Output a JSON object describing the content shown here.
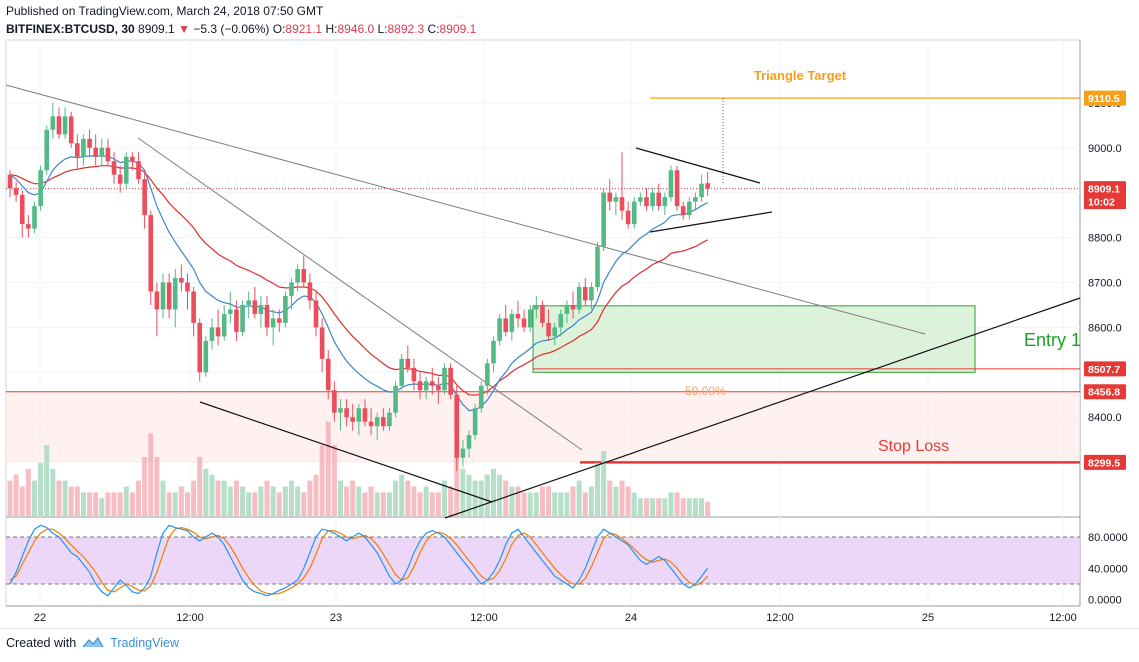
{
  "header": {
    "published": "Published on TradingView.com, March 24, 2018 07:50 GMT",
    "symbol": "BITFINEX:BTCUSD, 30",
    "last": "8909.1",
    "change": "−5.3 (−0.06%)",
    "open_label": "O:",
    "open": "8921.1",
    "high_label": "H:",
    "high": "8946.0",
    "low_label": "L:",
    "low": "8892.3",
    "close_label": "C:",
    "close": "8909.1"
  },
  "footer": {
    "created_with": "Created with",
    "brand": "TradingView"
  },
  "colors": {
    "up": "#53b987",
    "down": "#eb4d5c",
    "ema_fast": "#3d85c6",
    "ema_slow": "#e02c2c",
    "target": "#f4a01d",
    "stop": "#e53935",
    "entry_fill": "#d7f0d4",
    "entry_border": "#2e9e33",
    "stoch_bg": "#e8cdf7",
    "stoch_k": "#2196f3",
    "stoch_d": "#f57c00"
  },
  "annotations": {
    "triangle_target": "Triangle Target",
    "entry": "Entry 1",
    "stop_loss": "Stop Loss",
    "fib_50": "50.00%"
  },
  "chart_data": {
    "type": "candlestick",
    "title": "BITFINEX:BTCUSD, 30",
    "price_ylim": [
      8180,
      9240
    ],
    "price_ticks": [
      "9100.0",
      "9000.0",
      "8900.0",
      "8800.0",
      "8700.0",
      "8600.0",
      "8500.0",
      "8400.0",
      "8300.0"
    ],
    "price_tags": [
      {
        "label": "9110.5",
        "value": 9110.5,
        "color": "#f4a01d"
      },
      {
        "label": "8909.1",
        "value": 8909.1,
        "color": "#e53935"
      },
      {
        "label": "10:02",
        "value": 8880,
        "color": "#e53935"
      },
      {
        "label": "8507.7",
        "value": 8507.7,
        "color": "#e53935"
      },
      {
        "label": "8456.8",
        "value": 8456.8,
        "color": "#e53935"
      },
      {
        "label": "8299.5",
        "value": 8299.5,
        "color": "#e53935"
      }
    ],
    "x_ticks": [
      "22",
      "12:00",
      "23",
      "12:00",
      "24",
      "12:00",
      "25",
      "12:00"
    ],
    "stoch_ticks": [
      "80.0000",
      "40.0000",
      "0.0000"
    ],
    "stoch_levels": [
      80,
      20
    ],
    "levels": {
      "target": 9110.5,
      "entry_high": 8648,
      "entry_low": 8500,
      "fib_50": 8507.7,
      "stop_top": 8456.8,
      "stop_bottom": 8299.5,
      "last": 8909.1
    },
    "candles": [
      [
        8940,
        8950,
        8890,
        8910
      ],
      [
        8910,
        8925,
        8880,
        8895
      ],
      [
        8895,
        8905,
        8800,
        8830
      ],
      [
        8830,
        8850,
        8800,
        8820
      ],
      [
        8820,
        8880,
        8810,
        8870
      ],
      [
        8870,
        8960,
        8860,
        8950
      ],
      [
        8950,
        9050,
        8940,
        9040
      ],
      [
        9040,
        9100,
        9020,
        9070
      ],
      [
        9070,
        9090,
        9020,
        9030
      ],
      [
        9030,
        9090,
        9020,
        9070
      ],
      [
        9070,
        9080,
        9000,
        9010
      ],
      [
        9010,
        9030,
        8950,
        8980
      ],
      [
        8980,
        9030,
        8960,
        9020
      ],
      [
        9020,
        9040,
        8980,
        9000
      ],
      [
        9000,
        9030,
        8960,
        8980
      ],
      [
        8980,
        9020,
        8960,
        9000
      ],
      [
        9000,
        9020,
        8960,
        8970
      ],
      [
        8970,
        8990,
        8920,
        8940
      ],
      [
        8940,
        8960,
        8900,
        8920
      ],
      [
        8920,
        8990,
        8910,
        8980
      ],
      [
        8980,
        8990,
        8950,
        8970
      ],
      [
        8970,
        8990,
        8920,
        8930
      ],
      [
        8930,
        8950,
        8820,
        8850
      ],
      [
        8850,
        8860,
        8650,
        8680
      ],
      [
        8680,
        8700,
        8580,
        8640
      ],
      [
        8640,
        8720,
        8620,
        8700
      ],
      [
        8700,
        8720,
        8620,
        8640
      ],
      [
        8640,
        8730,
        8600,
        8710
      ],
      [
        8710,
        8740,
        8680,
        8700
      ],
      [
        8700,
        8720,
        8640,
        8680
      ],
      [
        8680,
        8690,
        8580,
        8610
      ],
      [
        8610,
        8620,
        8480,
        8500
      ],
      [
        8500,
        8580,
        8490,
        8570
      ],
      [
        8570,
        8620,
        8550,
        8600
      ],
      [
        8600,
        8640,
        8560,
        8580
      ],
      [
        8580,
        8650,
        8570,
        8630
      ],
      [
        8630,
        8680,
        8610,
        8640
      ],
      [
        8640,
        8660,
        8570,
        8590
      ],
      [
        8590,
        8660,
        8580,
        8650
      ],
      [
        8650,
        8680,
        8620,
        8660
      ],
      [
        8660,
        8690,
        8620,
        8630
      ],
      [
        8630,
        8670,
        8600,
        8650
      ],
      [
        8650,
        8670,
        8580,
        8600
      ],
      [
        8600,
        8640,
        8560,
        8620
      ],
      [
        8620,
        8640,
        8590,
        8610
      ],
      [
        8610,
        8680,
        8600,
        8670
      ],
      [
        8670,
        8710,
        8640,
        8700
      ],
      [
        8700,
        8740,
        8680,
        8730
      ],
      [
        8730,
        8760,
        8690,
        8700
      ],
      [
        8700,
        8720,
        8640,
        8660
      ],
      [
        8660,
        8680,
        8580,
        8600
      ],
      [
        8600,
        8620,
        8500,
        8530
      ],
      [
        8530,
        8550,
        8440,
        8460
      ],
      [
        8460,
        8480,
        8390,
        8410
      ],
      [
        8410,
        8440,
        8370,
        8420
      ],
      [
        8420,
        8440,
        8380,
        8400
      ],
      [
        8400,
        8430,
        8370,
        8390
      ],
      [
        8390,
        8430,
        8360,
        8420
      ],
      [
        8420,
        8440,
        8380,
        8390
      ],
      [
        8390,
        8420,
        8360,
        8380
      ],
      [
        8380,
        8410,
        8350,
        8400
      ],
      [
        8400,
        8420,
        8370,
        8380
      ],
      [
        8380,
        8420,
        8370,
        8410
      ],
      [
        8410,
        8480,
        8400,
        8470
      ],
      [
        8470,
        8540,
        8460,
        8530
      ],
      [
        8530,
        8560,
        8500,
        8510
      ],
      [
        8510,
        8530,
        8460,
        8480
      ],
      [
        8480,
        8500,
        8440,
        8460
      ],
      [
        8460,
        8490,
        8440,
        8480
      ],
      [
        8480,
        8510,
        8450,
        8470
      ],
      [
        8470,
        8490,
        8430,
        8460
      ],
      [
        8460,
        8520,
        8450,
        8510
      ],
      [
        8510,
        8520,
        8440,
        8450
      ],
      [
        8450,
        8470,
        8280,
        8310
      ],
      [
        8310,
        8350,
        8290,
        8330
      ],
      [
        8330,
        8370,
        8310,
        8360
      ],
      [
        8360,
        8430,
        8350,
        8420
      ],
      [
        8420,
        8480,
        8410,
        8470
      ],
      [
        8470,
        8530,
        8450,
        8520
      ],
      [
        8520,
        8580,
        8500,
        8570
      ],
      [
        8570,
        8630,
        8560,
        8620
      ],
      [
        8620,
        8650,
        8580,
        8590
      ],
      [
        8590,
        8640,
        8570,
        8630
      ],
      [
        8630,
        8660,
        8600,
        8620
      ],
      [
        8620,
        8640,
        8590,
        8600
      ],
      [
        8600,
        8650,
        8590,
        8640
      ],
      [
        8640,
        8670,
        8620,
        8650
      ],
      [
        8650,
        8660,
        8600,
        8610
      ],
      [
        8610,
        8640,
        8570,
        8580
      ],
      [
        8580,
        8610,
        8560,
        8600
      ],
      [
        8600,
        8640,
        8580,
        8630
      ],
      [
        8630,
        8660,
        8610,
        8650
      ],
      [
        8650,
        8680,
        8620,
        8640
      ],
      [
        8640,
        8700,
        8630,
        8690
      ],
      [
        8690,
        8710,
        8650,
        8660
      ],
      [
        8660,
        8700,
        8640,
        8690
      ],
      [
        8690,
        8790,
        8680,
        8780
      ],
      [
        8780,
        8910,
        8770,
        8900
      ],
      [
        8900,
        8930,
        8860,
        8880
      ],
      [
        8880,
        8900,
        8850,
        8890
      ],
      [
        8890,
        8990,
        8840,
        8860
      ],
      [
        8860,
        8880,
        8820,
        8830
      ],
      [
        8830,
        8890,
        8820,
        8880
      ],
      [
        8880,
        8900,
        8870,
        8890
      ],
      [
        8890,
        8910,
        8860,
        8870
      ],
      [
        8870,
        8910,
        8860,
        8900
      ],
      [
        8900,
        8920,
        8860,
        8870
      ],
      [
        8870,
        8900,
        8850,
        8890
      ],
      [
        8890,
        8960,
        8880,
        8950
      ],
      [
        8950,
        8960,
        8860,
        8870
      ],
      [
        8870,
        8880,
        8840,
        8850
      ],
      [
        8850,
        8890,
        8840,
        8880
      ],
      [
        8880,
        8900,
        8860,
        8890
      ],
      [
        8890,
        8940,
        8880,
        8920
      ],
      [
        8921.1,
        8946,
        8892.3,
        8909.1
      ]
    ],
    "ema_fast": [
      8940,
      8930,
      8915,
      8900,
      8895,
      8900,
      8925,
      8950,
      8965,
      8975,
      8980,
      8978,
      8980,
      8982,
      8981,
      8982,
      8981,
      8975,
      8967,
      8970,
      8970,
      8966,
      8950,
      8910,
      8870,
      8840,
      8812,
      8790,
      8770,
      8750,
      8730,
      8700,
      8680,
      8670,
      8660,
      8655,
      8652,
      8645,
      8645,
      8648,
      8646,
      8646,
      8638,
      8635,
      8632,
      8638,
      8648,
      8662,
      8670,
      8668,
      8655,
      8630,
      8600,
      8568,
      8545,
      8525,
      8510,
      8497,
      8486,
      8476,
      8469,
      8461,
      8456,
      8457,
      8466,
      8472,
      8474,
      8473,
      8474,
      8473,
      8471,
      8476,
      8473,
      8448,
      8428,
      8415,
      8416,
      8424,
      8438,
      8459,
      8484,
      8500,
      8520,
      8533,
      8542,
      8553,
      8565,
      8570,
      8572,
      8576,
      8584,
      8595,
      8604,
      8617,
      8625,
      8634,
      8660,
      8700,
      8725,
      8747,
      8763,
      8772,
      8786,
      8799,
      8808,
      8819,
      8826,
      8834,
      8848,
      8851,
      8851,
      8856,
      8862,
      8871,
      8878
    ],
    "ema_slow": [
      8940,
      8938,
      8932,
      8925,
      8920,
      8920,
      8925,
      8933,
      8939,
      8946,
      8950,
      8952,
      8955,
      8957,
      8958,
      8960,
      8960,
      8958,
      8955,
      8955,
      8955,
      8953,
      8946,
      8929,
      8910,
      8895,
      8877,
      8863,
      8850,
      8837,
      8822,
      8802,
      8787,
      8775,
      8763,
      8755,
      8748,
      8738,
      8732,
      8727,
      8720,
      8714,
      8705,
      8698,
      8690,
      8688,
      8688,
      8690,
      8690,
      8688,
      8681,
      8668,
      8650,
      8630,
      8612,
      8595,
      8580,
      8567,
      8553,
      8540,
      8530,
      8519,
      8510,
      8506,
      8508,
      8508,
      8506,
      8502,
      8500,
      8497,
      8493,
      8494,
      8490,
      8472,
      8459,
      8450,
      8449,
      8452,
      8458,
      8468,
      8481,
      8490,
      8501,
      8510,
      8517,
      8525,
      8534,
      8540,
      8543,
      8548,
      8555,
      8563,
      8570,
      8580,
      8587,
      8595,
      8612,
      8640,
      8660,
      8678,
      8692,
      8700,
      8712,
      8722,
      8730,
      8740,
      8746,
      8753,
      8765,
      8768,
      8770,
      8775,
      8780,
      8788,
      8795
    ],
    "volumes": [
      0.3,
      0.35,
      0.25,
      0.4,
      0.3,
      0.45,
      0.6,
      0.4,
      0.3,
      0.3,
      0.25,
      0.25,
      0.2,
      0.2,
      0.2,
      0.15,
      0.2,
      0.2,
      0.2,
      0.25,
      0.2,
      0.3,
      0.5,
      0.7,
      0.5,
      0.3,
      0.2,
      0.2,
      0.25,
      0.2,
      0.3,
      0.5,
      0.4,
      0.35,
      0.3,
      0.3,
      0.25,
      0.3,
      0.25,
      0.2,
      0.2,
      0.25,
      0.3,
      0.25,
      0.2,
      0.25,
      0.3,
      0.25,
      0.2,
      0.3,
      0.35,
      0.6,
      0.8,
      0.6,
      0.3,
      0.25,
      0.3,
      0.25,
      0.2,
      0.25,
      0.2,
      0.2,
      0.2,
      0.3,
      0.35,
      0.3,
      0.25,
      0.2,
      0.25,
      0.2,
      0.2,
      0.3,
      0.25,
      1.0,
      0.4,
      0.35,
      0.3,
      0.3,
      0.35,
      0.4,
      0.35,
      0.3,
      0.25,
      0.25,
      0.2,
      0.2,
      0.2,
      0.25,
      0.25,
      0.2,
      0.2,
      0.2,
      0.25,
      0.3,
      0.2,
      0.25,
      0.45,
      0.55,
      0.3,
      0.25,
      0.3,
      0.25,
      0.2,
      0.15,
      0.15,
      0.15,
      0.15,
      0.15,
      0.2,
      0.2,
      0.15,
      0.15,
      0.15,
      0.15,
      0.12
    ],
    "stoch_k": [
      20,
      35,
      55,
      75,
      90,
      95,
      92,
      85,
      80,
      70,
      60,
      55,
      45,
      35,
      20,
      10,
      5,
      15,
      25,
      18,
      10,
      8,
      15,
      30,
      60,
      85,
      95,
      92,
      90,
      88,
      80,
      75,
      80,
      85,
      80,
      70,
      55,
      40,
      25,
      15,
      10,
      8,
      5,
      8,
      12,
      15,
      20,
      25,
      40,
      60,
      80,
      90,
      88,
      85,
      80,
      75,
      80,
      85,
      80,
      70,
      60,
      45,
      30,
      20,
      25,
      40,
      60,
      75,
      85,
      88,
      85,
      80,
      70,
      60,
      50,
      40,
      30,
      20,
      25,
      35,
      50,
      70,
      85,
      90,
      80,
      70,
      60,
      50,
      40,
      30,
      25,
      20,
      15,
      25,
      40,
      60,
      80,
      90,
      85,
      80,
      75,
      70,
      60,
      50,
      45,
      50,
      55,
      50,
      40,
      30,
      20,
      15,
      20,
      30,
      40
    ],
    "stoch_d": [
      25,
      30,
      45,
      60,
      75,
      85,
      90,
      90,
      85,
      78,
      70,
      62,
      55,
      45,
      35,
      22,
      12,
      10,
      15,
      20,
      17,
      12,
      11,
      18,
      35,
      58,
      80,
      90,
      92,
      90,
      86,
      80,
      78,
      80,
      82,
      78,
      68,
      55,
      40,
      28,
      18,
      11,
      8,
      7,
      8,
      11,
      15,
      20,
      28,
      40,
      58,
      78,
      88,
      88,
      85,
      80,
      78,
      80,
      82,
      78,
      70,
      58,
      45,
      32,
      25,
      28,
      42,
      60,
      75,
      83,
      86,
      84,
      78,
      70,
      60,
      50,
      40,
      30,
      25,
      27,
      37,
      52,
      70,
      82,
      85,
      80,
      70,
      60,
      50,
      40,
      32,
      25,
      20,
      20,
      27,
      42,
      60,
      78,
      85,
      83,
      78,
      72,
      65,
      57,
      51,
      48,
      50,
      52,
      48,
      40,
      30,
      22,
      18,
      22,
      30
    ]
  }
}
